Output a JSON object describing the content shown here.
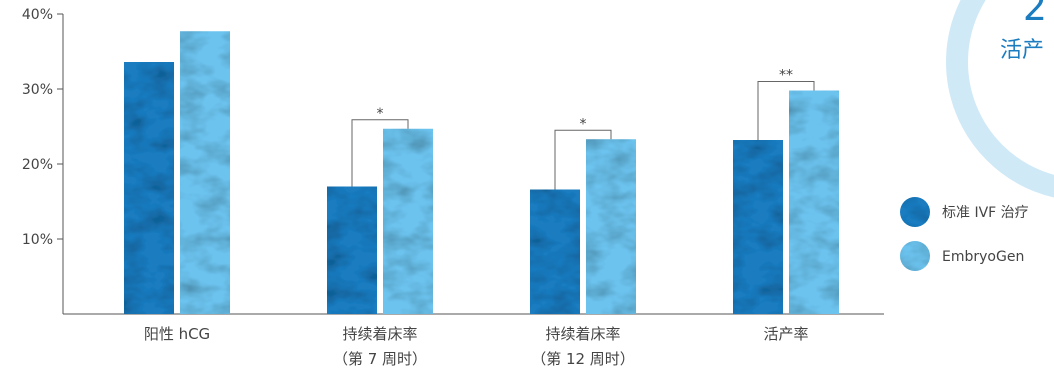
{
  "chart_data": {
    "type": "bar",
    "categories": [
      [
        "阳性 hCG"
      ],
      [
        "持续着床率",
        "（第 7 周时）"
      ],
      [
        "持续着床率",
        "（第 12 周时）"
      ],
      [
        "活产率"
      ]
    ],
    "series": [
      {
        "name": "标准 IVF 治疗",
        "values": [
          33.6,
          17.0,
          16.6,
          23.2
        ],
        "color": "#1c7cc0"
      },
      {
        "name": "EmbryoGen",
        "values": [
          37.7,
          24.7,
          23.3,
          29.8
        ],
        "color": "#6cc3ee"
      }
    ],
    "ylim": [
      0,
      40
    ],
    "yticks": [
      "10%",
      "20%",
      "30%",
      "40%"
    ],
    "ytick_values": [
      10,
      20,
      30,
      40
    ],
    "significance": [
      "",
      "*",
      "*",
      "**"
    ],
    "legend_position": "right",
    "xlabel": "",
    "ylabel": "",
    "title": ""
  },
  "badge": {
    "number": "2",
    "text": "活产"
  },
  "colors": {
    "axis": "#555555",
    "text": "#444444",
    "bracket": "#666666",
    "badge_ring": "#cfe9f7"
  }
}
